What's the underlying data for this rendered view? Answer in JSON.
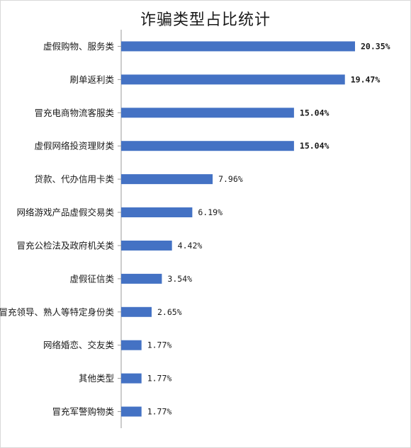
{
  "chart_data": {
    "type": "bar",
    "orientation": "horizontal",
    "title": "诈骗类型占比统计",
    "categories": [
      "虚假购物、服务类",
      "刷单返利类",
      "冒充电商物流客服类",
      "虚假网络投资理财类",
      "贷款、代办信用卡类",
      "网络游戏产品虚假交易类",
      "冒充公检法及政府机关类",
      "虚假征信类",
      "冒充领导、熟人等特定身份类",
      "网络婚恋、交友类",
      "其他类型",
      "冒充军警购物类"
    ],
    "values": [
      20.35,
      19.47,
      15.04,
      15.04,
      7.96,
      6.19,
      4.42,
      3.54,
      2.65,
      1.77,
      1.77,
      1.77
    ],
    "value_labels": [
      "20.35%",
      "19.47%",
      "15.04%",
      "15.04%",
      "7.96%",
      "6.19%",
      "4.42%",
      "3.54%",
      "2.65%",
      "1.77%",
      "1.77%",
      "1.77%"
    ],
    "label_colors": [
      "#c00000",
      "#ed7d31",
      "#ed7d31",
      "#ed7d31",
      "#1a1a1a",
      "#1a1a1a",
      "#1a1a1a",
      "#1a1a1a",
      "#1a1a1a",
      "#1a1a1a",
      "#1a1a1a",
      "#1a1a1a"
    ],
    "bar_color": "#4472c4",
    "xlim": [
      0,
      21
    ],
    "grid": false,
    "legend": "none"
  }
}
